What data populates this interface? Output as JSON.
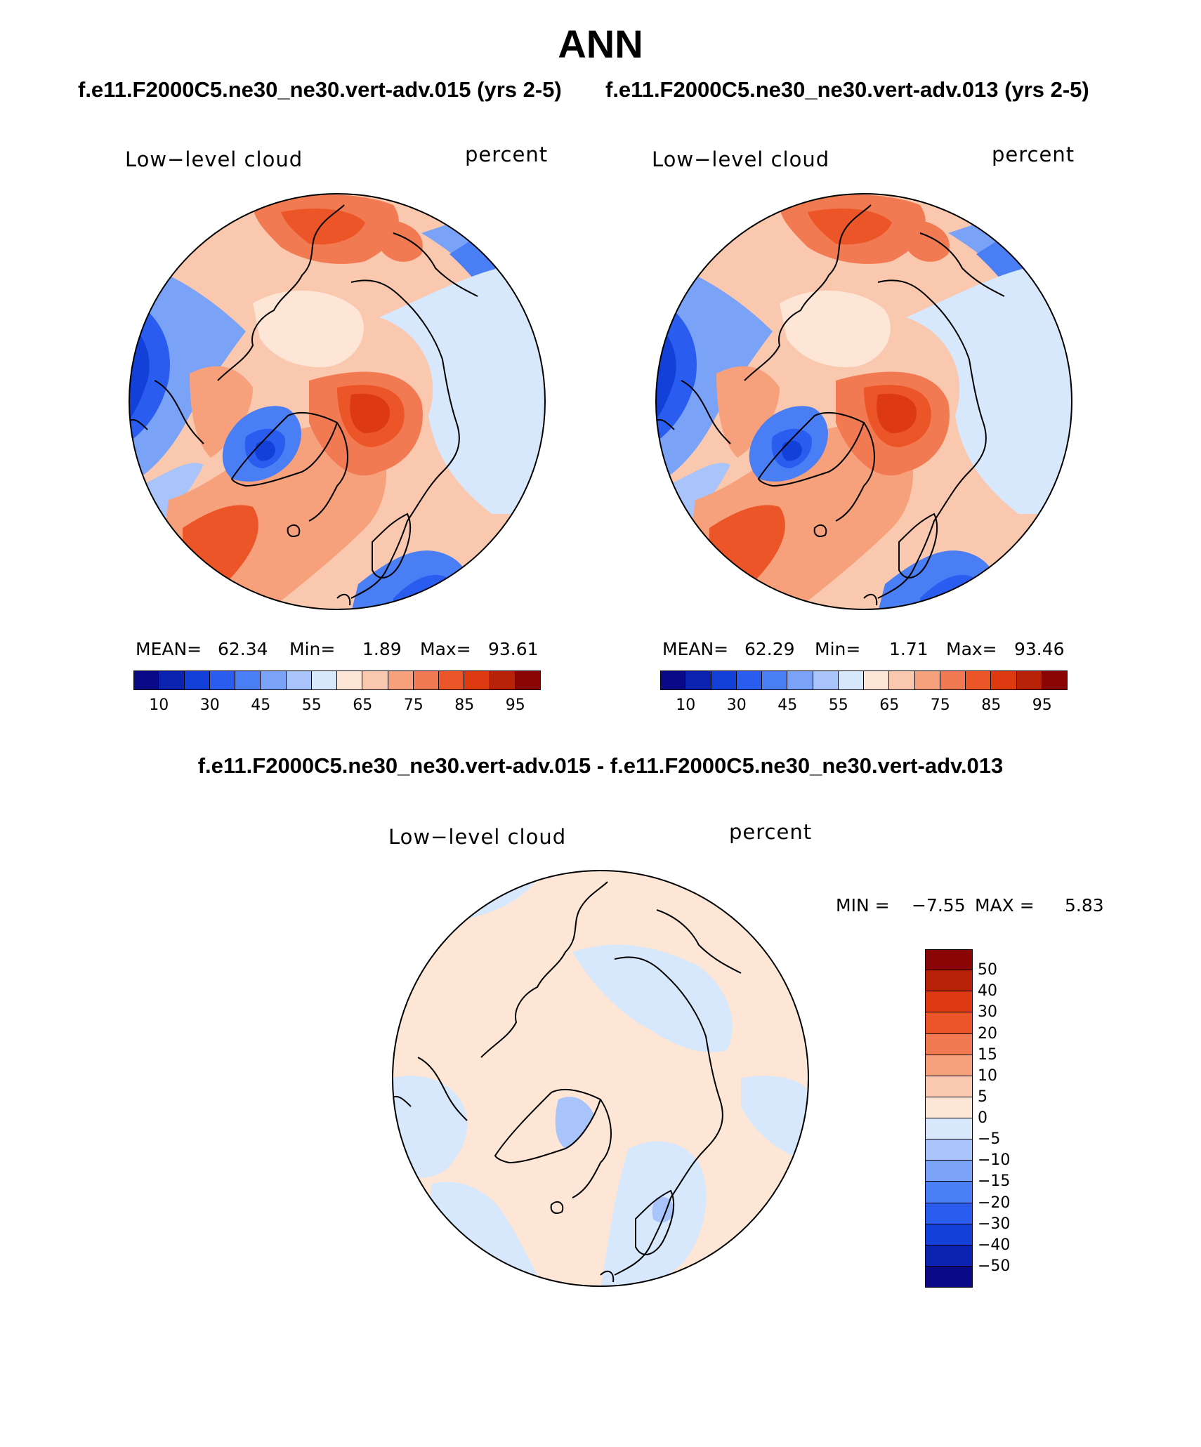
{
  "page": {
    "title": "ANN",
    "case_a_title": "f.e11.F2000C5.ne30_ne30.vert-adv.015 (yrs 2-5)",
    "case_b_title": "f.e11.F2000C5.ne30_ne30.vert-adv.013 (yrs 2-5)",
    "diff_title": "f.e11.F2000C5.ne30_ne30.vert-adv.015 - f.e11.F2000C5.ne30_ne30.vert-adv.013"
  },
  "panels": {
    "a": {
      "variable": "Low−level cloud",
      "units": "percent",
      "mean_label": "MEAN=",
      "mean": "62.34",
      "min_label": "Min=",
      "min": "1.89",
      "max_label": "Max=",
      "max": "93.61"
    },
    "b": {
      "variable": "Low−level cloud",
      "units": "percent",
      "mean_label": "MEAN=",
      "mean": "62.29",
      "min_label": "Min=",
      "min": "1.71",
      "max_label": "Max=",
      "max": "93.46"
    },
    "diff": {
      "variable": "Low−level cloud",
      "units": "percent",
      "min_label": "MIN =",
      "min": "−7.55",
      "max_label": "MAX =",
      "max": "5.83"
    }
  },
  "colorbars": {
    "field": {
      "colors": [
        "#0a0a88",
        "#0b22b0",
        "#1240d8",
        "#2a5cf0",
        "#4a7ef5",
        "#7aa2f7",
        "#a8c4fa",
        "#d7e7fc",
        "#fde6d6",
        "#fac8ae",
        "#f6a07c",
        "#f27a52",
        "#ec5528",
        "#de3a12",
        "#b82208",
        "#8a0606"
      ],
      "ticks": [
        "10",
        "30",
        "45",
        "55",
        "65",
        "75",
        "85",
        "95"
      ]
    },
    "diff": {
      "colors": [
        "#0a0a88",
        "#0b22b0",
        "#1240d8",
        "#2a5cf0",
        "#4a7ef5",
        "#7aa2f7",
        "#a8c4fa",
        "#d7e7fc",
        "#fde6d6",
        "#fac8ae",
        "#f6a07c",
        "#f27a52",
        "#ec5528",
        "#de3a12",
        "#b82208",
        "#8a0606"
      ],
      "ticks": [
        "50",
        "40",
        "30",
        "20",
        "15",
        "10",
        "5",
        "0",
        "−5",
        "−10",
        "−15",
        "−20",
        "−30",
        "−40",
        "−50"
      ]
    }
  }
}
